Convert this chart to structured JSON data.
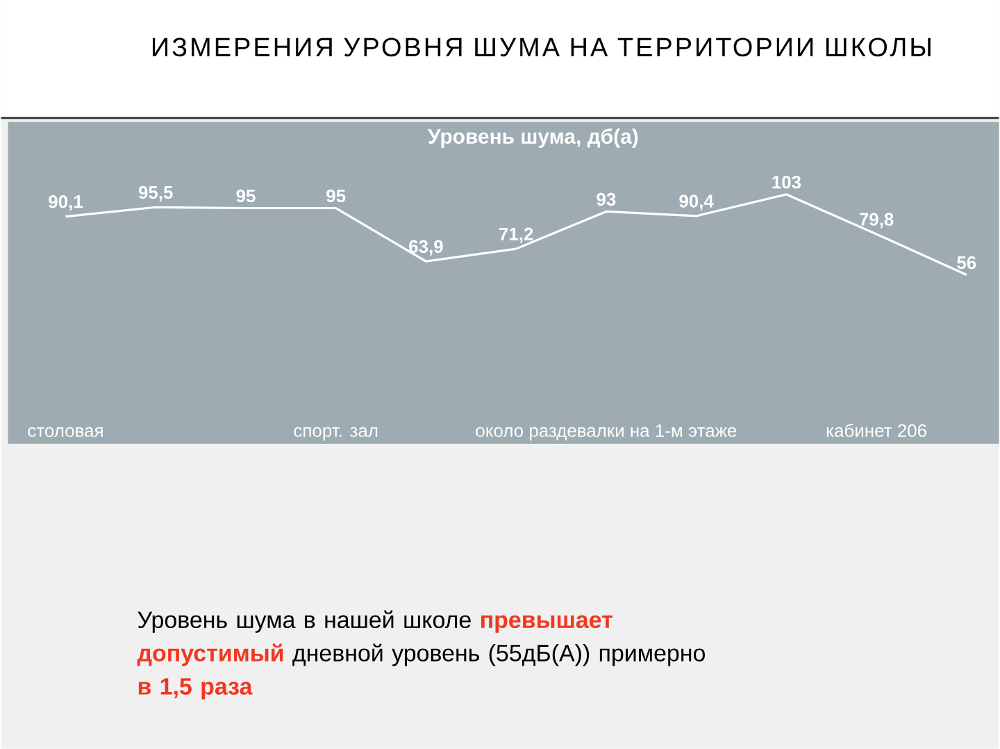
{
  "chart_data": {
    "type": "line",
    "title": "ИЗМЕРЕНИЯ УРОВНЯ ШУМА НА ТЕРРИТОРИИ ШКОЛЫ",
    "subtitle": "Уровень шума, дб(а)",
    "categories": [
      "столовая",
      null,
      null,
      "спорт. зал",
      null,
      null,
      "около раздевалки на 1-м этаже",
      null,
      null,
      "кабинет 206",
      null
    ],
    "series": [
      {
        "color": "#ffffff",
        "values": [
          90.1,
          95.5,
          95,
          95,
          63.9,
          71.2,
          93,
          90.4,
          103,
          79.8,
          56
        ],
        "value_labels": [
          "90,1",
          "95,5",
          "95",
          "95",
          "63,9",
          "71,2",
          "93",
          "90,4",
          "103",
          "79,8",
          "56"
        ]
      }
    ],
    "line_style": "solid",
    "annotations": [
      "Уровень шума в нашей школе **превышает допустимый** дневной уровень (55дБ(А)) примерно **в 1,5 раза**"
    ]
  }
}
